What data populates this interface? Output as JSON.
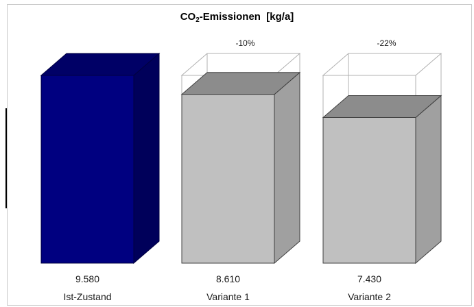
{
  "chart_data": {
    "type": "bar",
    "title_main": "CO",
    "title_sub": "2",
    "title_rest": "-Emissionen  [kg/a]",
    "categories": [
      "Ist-Zustand",
      "Variante 1",
      "Variante 2"
    ],
    "values": [
      9580,
      8610,
      7430
    ],
    "value_labels": [
      "9.580",
      "8.610",
      "7.430"
    ],
    "reduction_labels": [
      "",
      "-10%",
      "-22%"
    ],
    "reference_value": 9580,
    "ylim": [
      0,
      9580
    ],
    "colors": {
      "baseline_front": "#000080",
      "baseline_top": "#000066",
      "baseline_side": "#00005a",
      "variant_front": "#c0c0c0",
      "variant_top": "#8c8c8c",
      "variant_side": "#a0a0a0",
      "outline": "#b0b0b0"
    }
  }
}
